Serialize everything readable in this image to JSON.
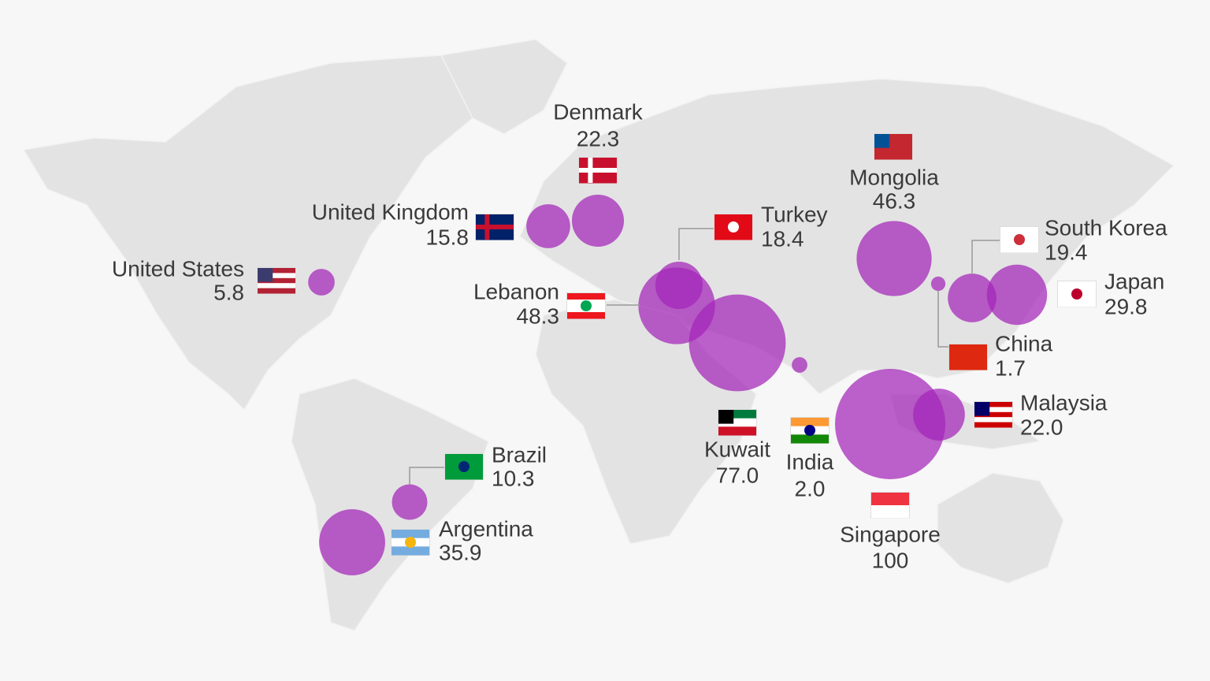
{
  "chart_data": {
    "type": "bubble-map",
    "categories": [
      "United States",
      "United Kingdom",
      "Denmark",
      "Turkey",
      "Lebanon",
      "Kuwait",
      "India",
      "Mongolia",
      "China",
      "South Korea",
      "Japan",
      "Singapore",
      "Malaysia",
      "Brazil",
      "Argentina"
    ],
    "values": [
      5.8,
      15.8,
      22.3,
      18.4,
      48.3,
      77.0,
      2.0,
      46.3,
      1.7,
      19.4,
      29.8,
      100,
      22.0,
      10.3,
      35.9
    ],
    "value_labels": [
      "5.8",
      "15.8",
      "22.3",
      "18.4",
      "48.3",
      "77.0",
      "2.0",
      "46.3",
      "1.7",
      "19.4",
      "29.8",
      "100",
      "22.0",
      "10.3",
      "35.9"
    ],
    "color": "#a424b8"
  }
}
